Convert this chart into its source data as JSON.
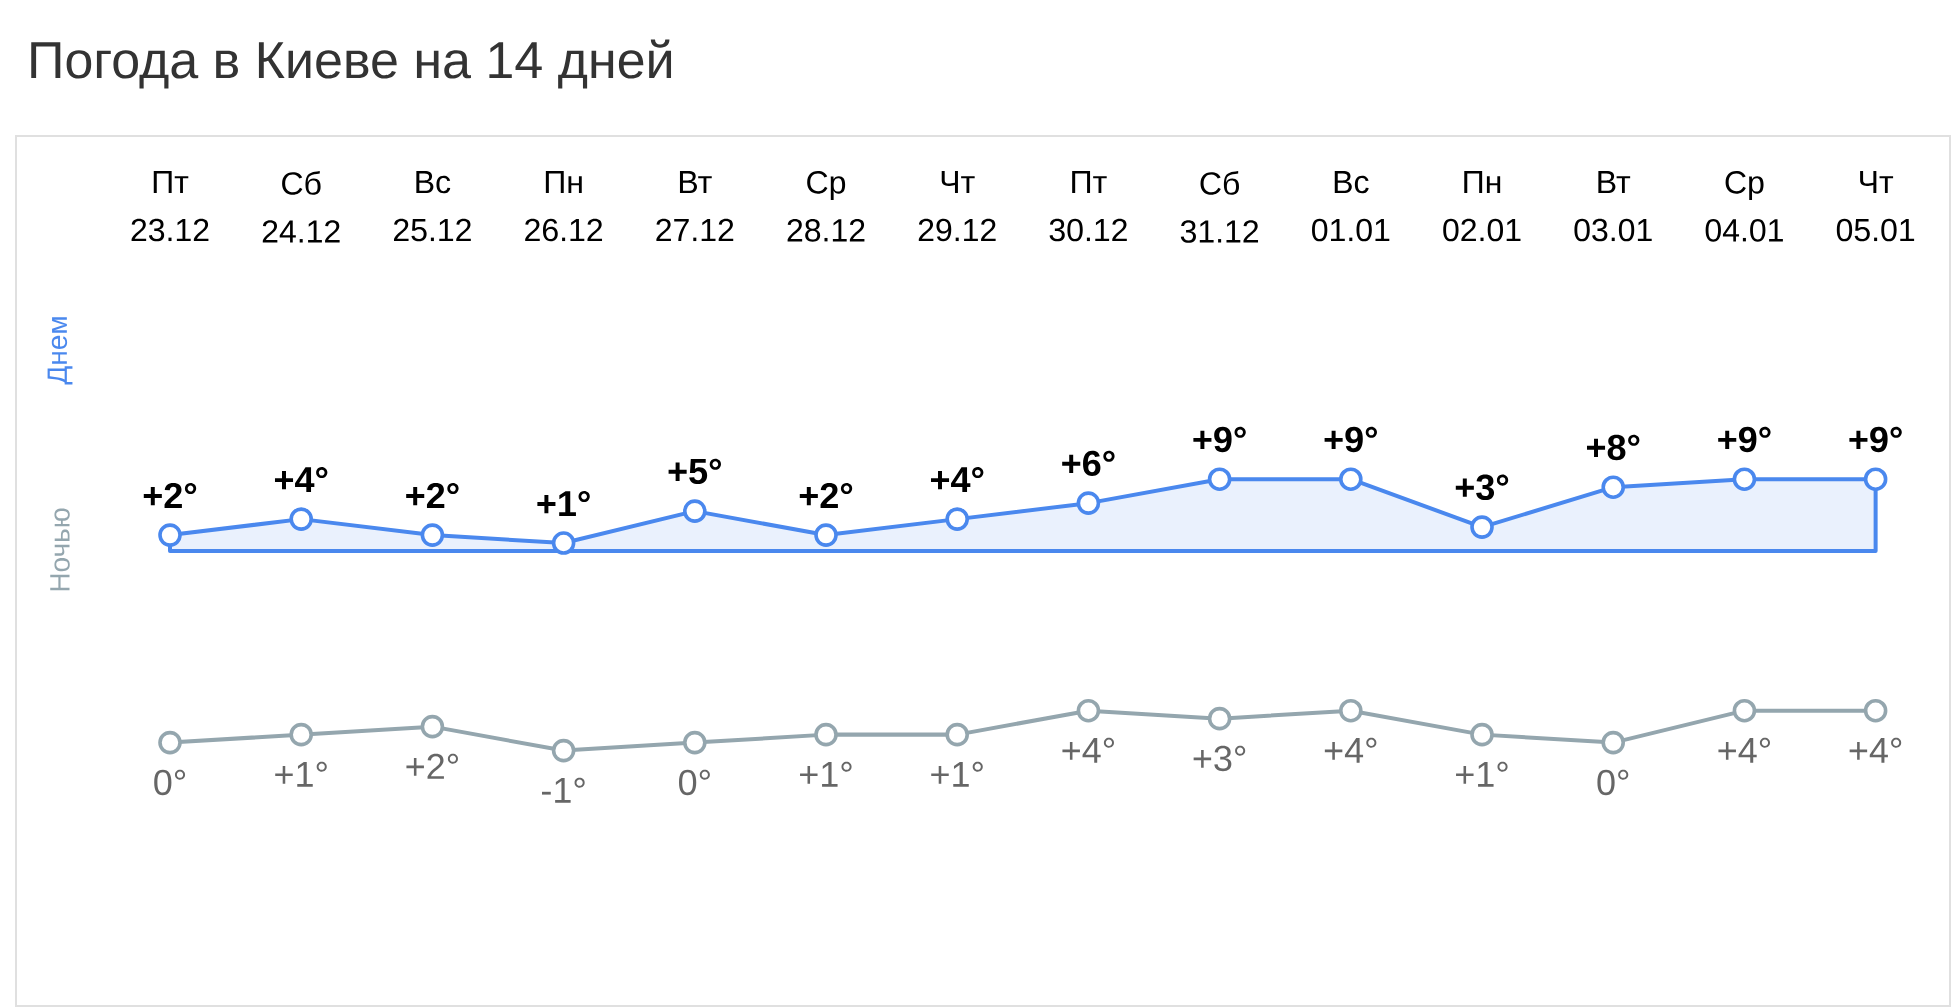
{
  "chart_data": {
    "type": "line",
    "title": "Погода в Киеве на 14 дней",
    "categories": [
      "Пт 23.12",
      "Сб 24.12",
      "Вс 25.12",
      "Пн 26.12",
      "Вт 27.12",
      "Ср 28.12",
      "Чт 29.12",
      "Пт 30.12",
      "Сб 31.12",
      "Вс 01.01",
      "Пн 02.01",
      "Вт 03.01",
      "Ср 04.01",
      "Чт 05.01"
    ],
    "series": [
      {
        "name": "Днем",
        "type": "area",
        "color": "#4a88ee",
        "values": [
          2,
          4,
          2,
          1,
          5,
          2,
          4,
          6,
          9,
          9,
          3,
          8,
          9,
          9
        ],
        "value_labels": [
          "+2°",
          "+4°",
          "+2°",
          "+1°",
          "+5°",
          "+2°",
          "+4°",
          "+6°",
          "+9°",
          "+9°",
          "+3°",
          "+8°",
          "+9°",
          "+9°"
        ]
      },
      {
        "name": "Ночью",
        "axis": "y2",
        "color": "#94a6ae",
        "values": [
          0,
          1,
          2,
          -1,
          0,
          1,
          1,
          4,
          3,
          4,
          1,
          0,
          4,
          4
        ],
        "value_labels": [
          "0°",
          "+1°",
          "+2°",
          "-1°",
          "0°",
          "+1°",
          "+1°",
          "+4°",
          "+3°",
          "+4°",
          "+1°",
          "0°",
          "+4°",
          "+4°"
        ]
      }
    ],
    "ylim": [
      -57,
      52
    ],
    "y2lim": [
      -33,
      76
    ],
    "marker": "circle",
    "legend": "left"
  }
}
